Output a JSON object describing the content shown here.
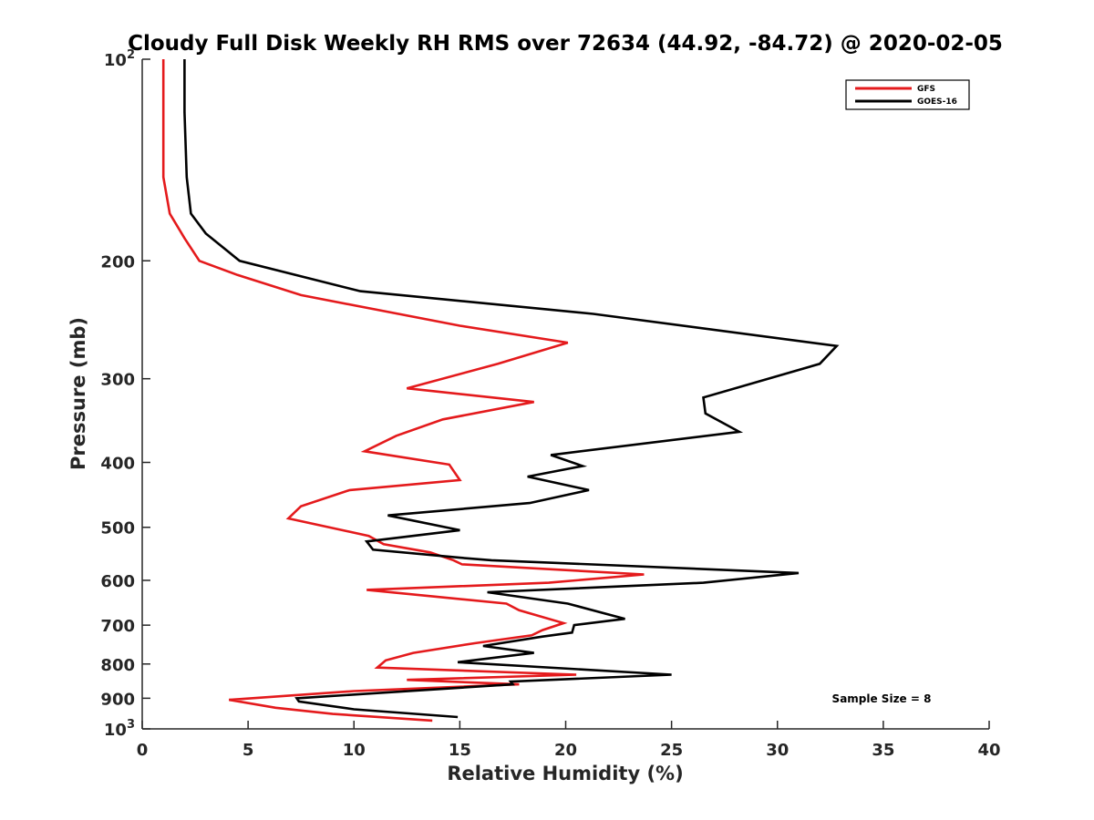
{
  "chart_data": {
    "type": "line",
    "title": "Cloudy Full Disk Weekly RH RMS over 72634 (44.92, -84.72) @ 2020-02-05",
    "xlabel": "Relative Humidity (%)",
    "ylabel": "Pressure (mb)",
    "xlim": [
      0,
      40
    ],
    "ylim": [
      100,
      1000
    ],
    "y_scale": "log",
    "y_reversed": true,
    "x_ticks": [
      {
        "value": 0,
        "label": "0"
      },
      {
        "value": 5,
        "label": "5"
      },
      {
        "value": 10,
        "label": "10"
      },
      {
        "value": 15,
        "label": "15"
      },
      {
        "value": 20,
        "label": "20"
      },
      {
        "value": 25,
        "label": "25"
      },
      {
        "value": 30,
        "label": "30"
      },
      {
        "value": 35,
        "label": "35"
      },
      {
        "value": 40,
        "label": "40"
      }
    ],
    "y_ticks": [
      {
        "value": 100,
        "label": "10",
        "sup": "2"
      },
      {
        "value": 200,
        "label": "200",
        "sup": ""
      },
      {
        "value": 300,
        "label": "300",
        "sup": ""
      },
      {
        "value": 400,
        "label": "400",
        "sup": ""
      },
      {
        "value": 500,
        "label": "500",
        "sup": ""
      },
      {
        "value": 600,
        "label": "600",
        "sup": ""
      },
      {
        "value": 700,
        "label": "700",
        "sup": ""
      },
      {
        "value": 800,
        "label": "800",
        "sup": ""
      },
      {
        "value": 900,
        "label": "900",
        "sup": ""
      },
      {
        "value": 1000,
        "label": "10",
        "sup": "3"
      }
    ],
    "grid": false,
    "legend_position": "top-right",
    "annotation": "Sample Size = 8",
    "series": [
      {
        "name": "GFS",
        "color": "#e41a1c",
        "points": [
          [
            1.0,
            100
          ],
          [
            1.0,
            150
          ],
          [
            1.3,
            170
          ],
          [
            2.0,
            185
          ],
          [
            2.7,
            200
          ],
          [
            4.5,
            210
          ],
          [
            7.5,
            225
          ],
          [
            15.0,
            250
          ],
          [
            20.1,
            265
          ],
          [
            16.8,
            285
          ],
          [
            12.5,
            310
          ],
          [
            18.5,
            325
          ],
          [
            14.2,
            345
          ],
          [
            12.0,
            365
          ],
          [
            10.5,
            385
          ],
          [
            14.5,
            403
          ],
          [
            15.0,
            425
          ],
          [
            9.8,
            440
          ],
          [
            7.5,
            465
          ],
          [
            6.9,
            485
          ],
          [
            10.7,
            515
          ],
          [
            11.4,
            530
          ],
          [
            13.6,
            545
          ],
          [
            14.7,
            560
          ],
          [
            15.1,
            568
          ],
          [
            23.7,
            588
          ],
          [
            19.2,
            605
          ],
          [
            10.6,
            620
          ],
          [
            17.2,
            650
          ],
          [
            17.8,
            665
          ],
          [
            19.9,
            695
          ],
          [
            18.9,
            712
          ],
          [
            18.4,
            725
          ],
          [
            15.7,
            745
          ],
          [
            12.8,
            770
          ],
          [
            11.5,
            790
          ],
          [
            11.1,
            810
          ],
          [
            20.5,
            830
          ],
          [
            12.5,
            845
          ],
          [
            17.8,
            858
          ],
          [
            10.0,
            878
          ],
          [
            4.1,
            905
          ],
          [
            6.3,
            930
          ],
          [
            9.0,
            950
          ],
          [
            13.7,
            972
          ]
        ]
      },
      {
        "name": "GOES-16",
        "color": "#000000",
        "points": [
          [
            2.0,
            100
          ],
          [
            2.0,
            120
          ],
          [
            2.1,
            150
          ],
          [
            2.3,
            170
          ],
          [
            3.0,
            182
          ],
          [
            4.6,
            200
          ],
          [
            10.3,
            222
          ],
          [
            21.3,
            240
          ],
          [
            32.8,
            268
          ],
          [
            32.0,
            285
          ],
          [
            26.5,
            320
          ],
          [
            26.6,
            338
          ],
          [
            28.2,
            360
          ],
          [
            19.3,
            390
          ],
          [
            20.8,
            405
          ],
          [
            18.2,
            420
          ],
          [
            21.1,
            440
          ],
          [
            18.3,
            460
          ],
          [
            11.6,
            480
          ],
          [
            15.0,
            505
          ],
          [
            10.6,
            525
          ],
          [
            10.9,
            540
          ],
          [
            15.0,
            555
          ],
          [
            16.5,
            560
          ],
          [
            31.0,
            585
          ],
          [
            26.5,
            605
          ],
          [
            16.3,
            625
          ],
          [
            20.1,
            650
          ],
          [
            22.8,
            685
          ],
          [
            20.4,
            700
          ],
          [
            20.3,
            718
          ],
          [
            18.9,
            728
          ],
          [
            16.1,
            752
          ],
          [
            18.5,
            770
          ],
          [
            14.9,
            795
          ],
          [
            25.0,
            830
          ],
          [
            17.4,
            850
          ],
          [
            17.5,
            858
          ],
          [
            7.3,
            900
          ],
          [
            7.4,
            910
          ],
          [
            10.0,
            935
          ],
          [
            14.9,
            960
          ]
        ]
      }
    ]
  }
}
